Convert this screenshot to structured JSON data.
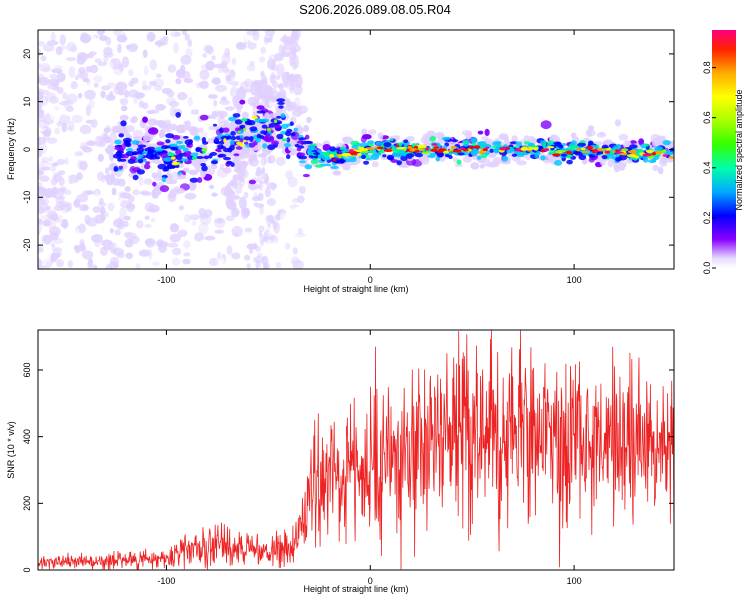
{
  "title": "S206.2026.089.08.05.R04",
  "chart_data": [
    {
      "type": "heatmap",
      "name": "spectrogram",
      "xlabel": "Height of straight line (km)",
      "ylabel": "Frequency (Hz)",
      "xlim": [
        -163,
        149
      ],
      "ylim": [
        -25,
        25
      ],
      "xticks": [
        -100,
        0,
        100
      ],
      "yticks": [
        -20,
        -10,
        0,
        10,
        20
      ],
      "colorbar": {
        "label": "Normalized spectral amplitude",
        "range": [
          0,
          0.95
        ],
        "ticks": [
          0.0,
          0.2,
          0.4,
          0.6,
          0.8
        ],
        "colors": [
          "#ffffff",
          "#e0d0ff",
          "#8000ff",
          "#0000ff",
          "#00c8ff",
          "#00ff80",
          "#80ff00",
          "#ffff00",
          "#ffa000",
          "#ff0000",
          "#ff0080"
        ]
      },
      "ridge": {
        "description": "frequency ridge vs height",
        "x": [
          -125,
          -100,
          -80,
          -60,
          -45,
          -35,
          -25,
          -10,
          0,
          50,
          100,
          149
        ],
        "y": [
          -1,
          -2,
          0,
          3,
          5,
          2,
          -2,
          -1,
          0,
          0,
          0,
          -1
        ]
      }
    },
    {
      "type": "line",
      "name": "snr",
      "xlabel": "Height of straight line (km)",
      "ylabel": "SNR (10 * v/v)",
      "xlim": [
        -163,
        149
      ],
      "ylim": [
        0,
        720
      ],
      "xticks": [
        -100,
        0,
        100
      ],
      "yticks": [
        0,
        200,
        400,
        600
      ],
      "color": "#ee2222",
      "series": [
        {
          "name": "SNR",
          "x": [
            -163,
            -140,
            -120,
            -100,
            -90,
            -80,
            -70,
            -60,
            -50,
            -40,
            -35,
            -30,
            -25,
            -20,
            -10,
            0,
            10,
            20,
            30,
            40,
            50,
            60,
            70,
            80,
            100,
            120,
            140,
            149
          ],
          "y": [
            20,
            25,
            28,
            35,
            60,
            85,
            70,
            60,
            45,
            60,
            110,
            230,
            280,
            260,
            280,
            300,
            330,
            370,
            390,
            400,
            410,
            410,
            400,
            390,
            380,
            370,
            360,
            380
          ]
        }
      ]
    }
  ]
}
